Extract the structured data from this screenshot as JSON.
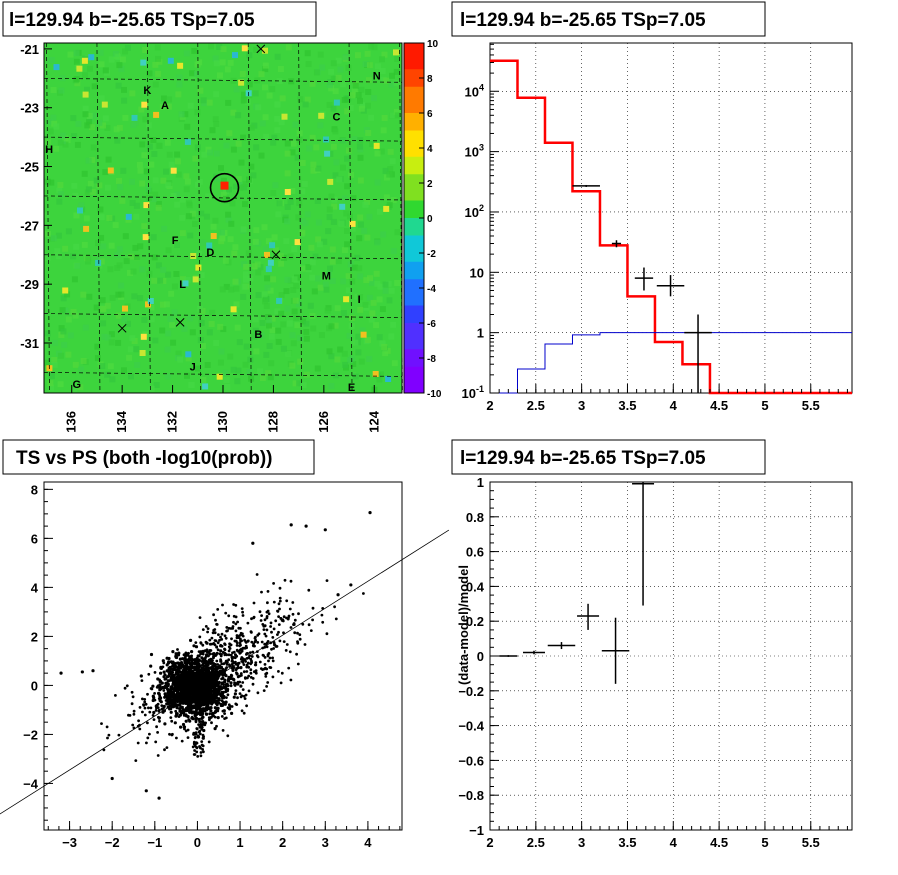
{
  "panels": {
    "map": {
      "title": "l=129.94 b=-25.65 TSp=7.05"
    },
    "spectrum": {
      "title": "l=129.94 b=-25.65 TSp=7.05"
    },
    "scatter": {
      "title": "TS vs PS (both -log10(prob))"
    },
    "residual": {
      "title": "l=129.94 b=-25.65 TSp=7.05"
    }
  },
  "chart_data": [
    {
      "type": "heatmap",
      "title": "l=129.94 b=-25.65 TSp=7.05",
      "x_ticks": [
        "136",
        "134",
        "132",
        "130",
        "128",
        "126",
        "124"
      ],
      "y_ticks": [
        "-21",
        "-23",
        "-25",
        "-27",
        "-29",
        "-31"
      ],
      "xlim": [
        137.1,
        122.9
      ],
      "ylim": [
        -32.7,
        -20.8
      ],
      "colorbar": {
        "ticks": [
          "10",
          "8",
          "6",
          "4",
          "2",
          "0",
          "-2",
          "-4",
          "-6",
          "-8",
          "-10"
        ],
        "range": [
          -10,
          10
        ]
      },
      "colors": {
        "background": "#3dd43d",
        "hot": "#ff2200",
        "cold": "#2299ff"
      },
      "sources": [
        {
          "label": "K",
          "l": 133.0,
          "b": -22.4
        },
        {
          "label": "A",
          "l": 132.3,
          "b": -22.9
        },
        {
          "label": "N",
          "l": 123.9,
          "b": -21.9
        },
        {
          "label": "C",
          "l": 125.5,
          "b": -23.3
        },
        {
          "label": "H",
          "l": 136.9,
          "b": -24.4
        },
        {
          "label": "F",
          "l": 131.9,
          "b": -27.5
        },
        {
          "label": "D",
          "l": 130.5,
          "b": -27.9
        },
        {
          "label": "M",
          "l": 125.9,
          "b": -28.7
        },
        {
          "label": "L",
          "l": 131.6,
          "b": -29.0
        },
        {
          "label": "I",
          "l": 124.6,
          "b": -29.5
        },
        {
          "label": "B",
          "l": 128.6,
          "b": -30.7
        },
        {
          "label": "J",
          "l": 131.2,
          "b": -31.8
        },
        {
          "label": "G",
          "l": 135.8,
          "b": -32.4
        },
        {
          "label": "E",
          "l": 124.9,
          "b": -32.5
        }
      ],
      "crosses": [
        {
          "l": 128.5,
          "b": -21.0
        },
        {
          "l": 127.9,
          "b": -28.0
        },
        {
          "l": 134.0,
          "b": -30.5
        },
        {
          "l": 131.7,
          "b": -30.3
        }
      ],
      "marker": {
        "l": 129.94,
        "b": -25.65
      }
    },
    {
      "type": "line",
      "title": "l=129.94 b=-25.65 TSp=7.05",
      "x_ticks": [
        "2",
        "2.5",
        "3",
        "3.5",
        "4",
        "4.5",
        "5",
        "5.5"
      ],
      "y_ticks": [
        "10^-1",
        "1",
        "10",
        "10^2",
        "10^3",
        "10^4"
      ],
      "xlim": [
        2,
        5.95
      ],
      "ylim_log10": [
        -1,
        4.8
      ],
      "log_y": true,
      "series": [
        {
          "color": "#ff0000",
          "bins": [
            2.0,
            2.3,
            2.6,
            2.9,
            3.2,
            3.5,
            3.8,
            4.1,
            4.4,
            5.95
          ],
          "values": [
            32000,
            7800,
            1400,
            220,
            28,
            4,
            0.7,
            0.3,
            0.1
          ]
        },
        {
          "color": "#0000cc",
          "bins": [
            2.0,
            2.3,
            2.6,
            2.9,
            3.2,
            3.5,
            3.8,
            4.1,
            4.4,
            5.95
          ],
          "values": [
            0.05,
            0.25,
            0.65,
            0.92,
            1.0,
            1.0,
            1.0,
            1.0,
            1.0
          ]
        }
      ],
      "points": [
        {
          "x": 3.05,
          "y": 270,
          "xerr": 0.15,
          "ylo": 260,
          "yhi": 280
        },
        {
          "x": 3.38,
          "y": 30,
          "xerr": 0.05,
          "ylo": 26,
          "yhi": 34
        },
        {
          "x": 3.68,
          "y": 8,
          "xerr": 0.1,
          "ylo": 5,
          "yhi": 12
        },
        {
          "x": 3.97,
          "y": 6,
          "xerr": 0.15,
          "ylo": 4,
          "yhi": 9
        },
        {
          "x": 4.27,
          "y": 1,
          "xerr": 0.15,
          "ylo": 0.1,
          "yhi": 2
        }
      ]
    },
    {
      "type": "scatter",
      "title": "TS vs PS (both -log10(prob))",
      "x_ticks": [
        "-3",
        "-2",
        "-1",
        "0",
        "1",
        "2",
        "3",
        "4"
      ],
      "y_ticks": [
        "-4",
        "-2",
        "0",
        "2",
        "4",
        "6",
        "8"
      ],
      "xlim": [
        -3.6,
        4.8
      ],
      "ylim": [
        -5.9,
        8.3
      ],
      "fit_line": {
        "slope": 1.1,
        "intercept": -0.15
      }
    },
    {
      "type": "scatter",
      "title": "l=129.94 b=-25.65 TSp=7.05",
      "ylabel": "(data-model)/model",
      "x_ticks": [
        "2",
        "2.5",
        "3",
        "3.5",
        "4",
        "4.5",
        "5",
        "5.5"
      ],
      "y_ticks": [
        "-1",
        "-0.8",
        "-0.6",
        "-0.4",
        "-0.2",
        "0",
        "0.2",
        "0.4",
        "0.6",
        "0.8",
        "1"
      ],
      "xlim": [
        2,
        5.95
      ],
      "ylim": [
        -1,
        1
      ],
      "points": [
        {
          "x": 2.2,
          "y": 0.0,
          "xerr": 0.1,
          "ylo": -0.005,
          "yhi": 0.005
        },
        {
          "x": 2.48,
          "y": 0.02,
          "xerr": 0.12,
          "ylo": 0.01,
          "yhi": 0.03
        },
        {
          "x": 2.78,
          "y": 0.06,
          "xerr": 0.15,
          "ylo": 0.04,
          "yhi": 0.08
        },
        {
          "x": 3.07,
          "y": 0.23,
          "xerr": 0.12,
          "ylo": 0.15,
          "yhi": 0.3
        },
        {
          "x": 3.37,
          "y": 0.03,
          "xerr": 0.15,
          "ylo": -0.16,
          "yhi": 0.22
        },
        {
          "x": 3.67,
          "y": 0.99,
          "xerr": 0.12,
          "ylo": 0.29,
          "yhi": 1.0
        }
      ]
    }
  ]
}
